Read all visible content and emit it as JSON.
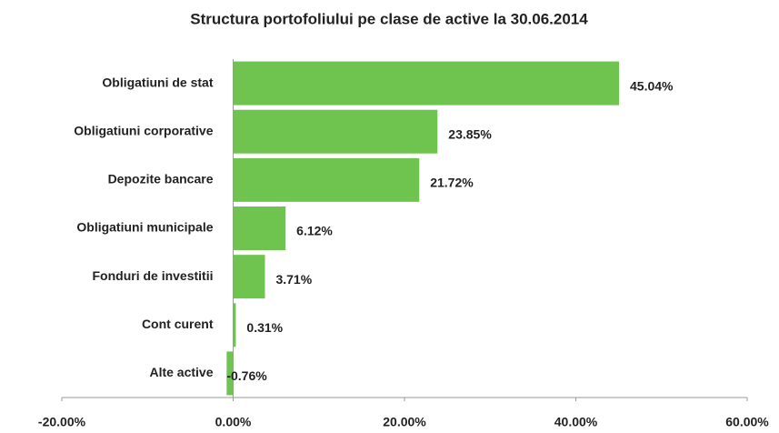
{
  "chart_data": {
    "type": "bar",
    "orientation": "horizontal",
    "title": "Structura portofoliului pe clase de active la 30.06.2014",
    "categories": [
      "Obligatiuni de stat",
      "Obligatiuni corporative",
      "Depozite bancare",
      "Obligatiuni municipale",
      "Fonduri de investitii",
      "Cont curent",
      "Alte active"
    ],
    "values": [
      45.04,
      23.85,
      21.72,
      6.12,
      3.71,
      0.31,
      -0.76
    ],
    "value_labels": [
      "45.04%",
      "23.85%",
      "21.72%",
      "6.12%",
      "3.71%",
      "0.31%",
      "-0.76%"
    ],
    "color": "#6fc34f",
    "xlim": [
      -20,
      60
    ],
    "xticks": [
      {
        "value": -20,
        "label": "-20.00%"
      },
      {
        "value": 0,
        "label": "0.00%"
      },
      {
        "value": 20,
        "label": "20.00%"
      },
      {
        "value": 40,
        "label": "40.00%"
      },
      {
        "value": 60,
        "label": "60.00%"
      }
    ],
    "grid": false
  }
}
